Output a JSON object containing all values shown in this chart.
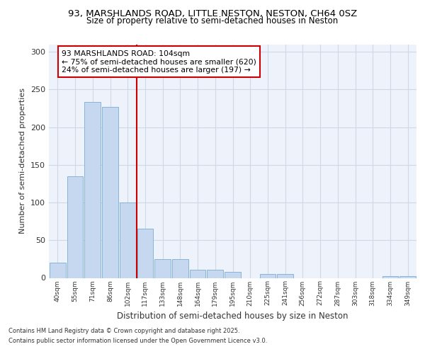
{
  "title1": "93, MARSHLANDS ROAD, LITTLE NESTON, NESTON, CH64 0SZ",
  "title2": "Size of property relative to semi-detached houses in Neston",
  "xlabel": "Distribution of semi-detached houses by size in Neston",
  "ylabel": "Number of semi-detached properties",
  "categories": [
    "40sqm",
    "55sqm",
    "71sqm",
    "86sqm",
    "102sqm",
    "117sqm",
    "133sqm",
    "148sqm",
    "164sqm",
    "179sqm",
    "195sqm",
    "210sqm",
    "225sqm",
    "241sqm",
    "256sqm",
    "272sqm",
    "287sqm",
    "303sqm",
    "318sqm",
    "334sqm",
    "349sqm"
  ],
  "values": [
    20,
    135,
    233,
    227,
    100,
    65,
    25,
    25,
    11,
    11,
    8,
    0,
    5,
    5,
    0,
    0,
    0,
    0,
    0,
    2,
    2
  ],
  "highlight_index": 4,
  "bar_color": "#c5d8f0",
  "bar_edge_color": "#7aadd4",
  "highlight_line_color": "#cc0000",
  "annotation_title": "93 MARSHLANDS ROAD: 104sqm",
  "annotation_line1": "← 75% of semi-detached houses are smaller (620)",
  "annotation_line2": "24% of semi-detached houses are larger (197) →",
  "footer1": "Contains HM Land Registry data © Crown copyright and database right 2025.",
  "footer2": "Contains public sector information licensed under the Open Government Licence v3.0.",
  "ylim": [
    0,
    310
  ],
  "yticks": [
    0,
    50,
    100,
    150,
    200,
    250,
    300
  ],
  "bg_color": "#ffffff",
  "plot_bg_color": "#eef2fa",
  "grid_color": "#d0d8e8"
}
